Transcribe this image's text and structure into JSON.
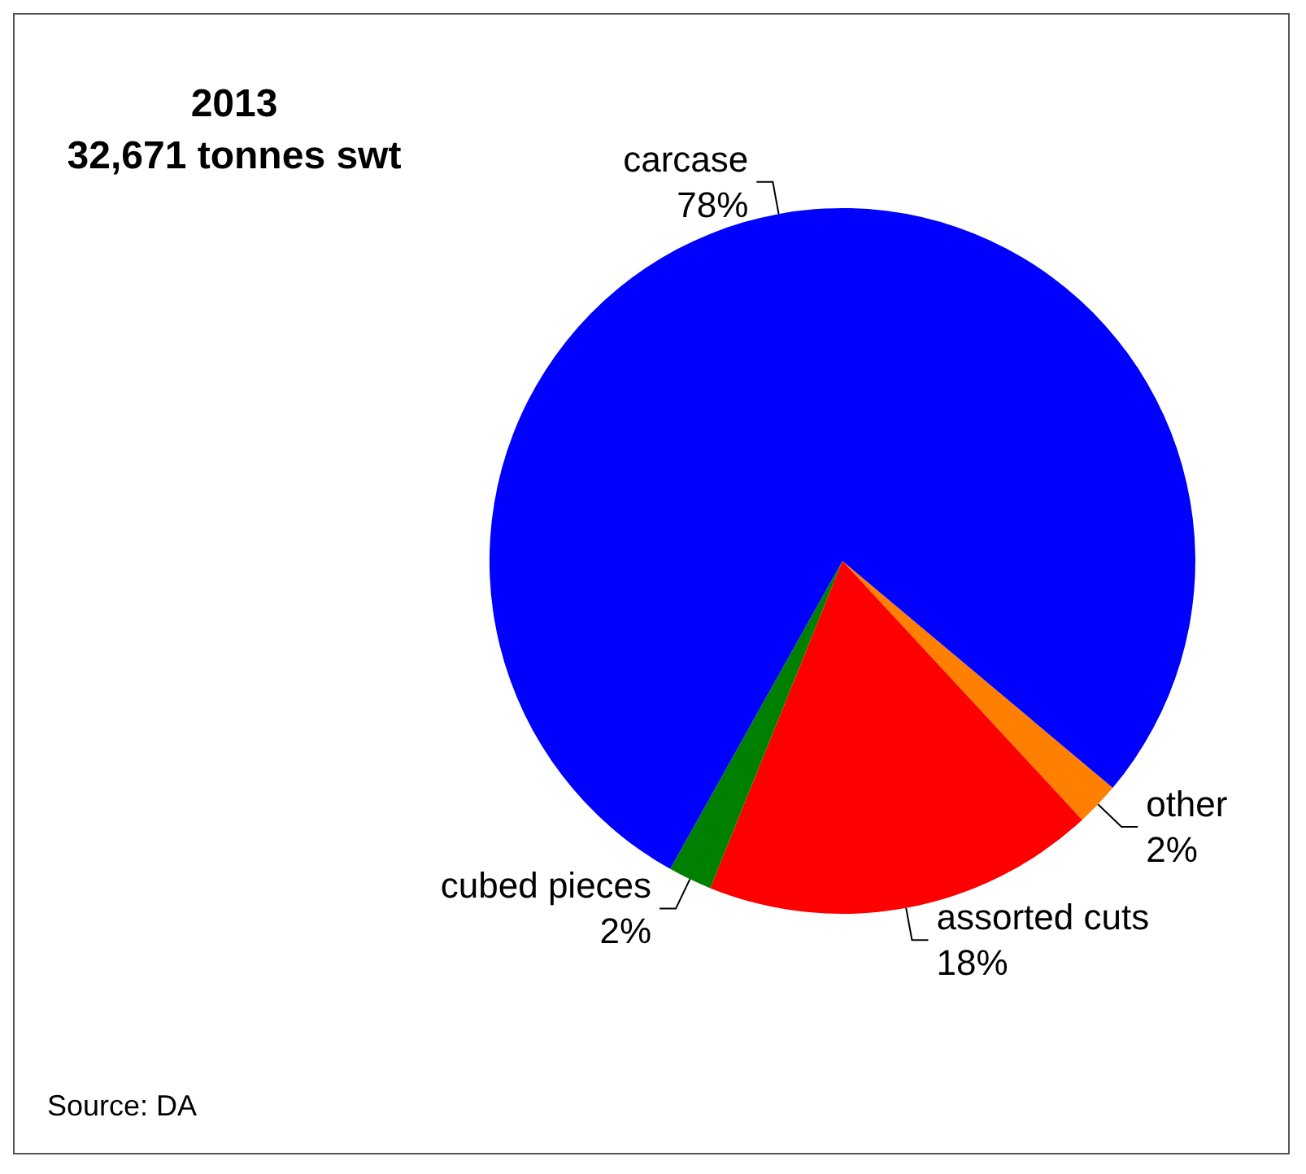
{
  "chart_data": {
    "type": "pie",
    "title": "2013",
    "subtitle": "32,671 tonnes swt",
    "categories": [
      "other",
      "assorted cuts",
      "cubed pieces",
      "carcase"
    ],
    "values": [
      2,
      18,
      2,
      78
    ],
    "value_labels": [
      "2%",
      "18%",
      "2%",
      "78%"
    ],
    "colors": [
      "#ff8000",
      "#ff0000",
      "#008000",
      "#0000ff"
    ],
    "annotations": [
      "Source: DA"
    ]
  }
}
